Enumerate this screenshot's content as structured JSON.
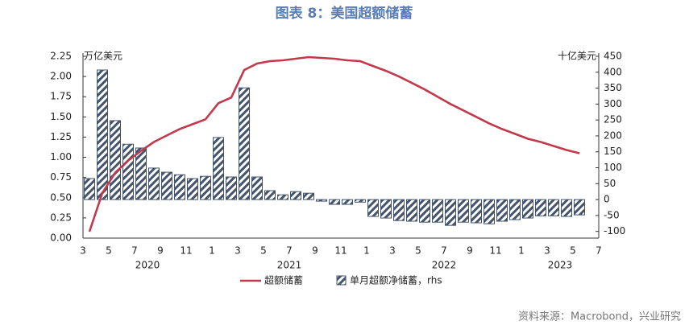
{
  "chart_data": {
    "type": "combo",
    "title": "图表 8：美国超额储蓄",
    "y_unit": "万亿美元",
    "y2_unit": "十亿美元",
    "source": "资料来源：Macrobond，兴业研究",
    "categories": [
      "3",
      null,
      "5",
      null,
      "7",
      null,
      "9",
      null,
      "11",
      null,
      "1",
      null,
      "3",
      null,
      "5",
      null,
      "7",
      null,
      "9",
      null,
      "11",
      null,
      "1",
      null,
      "3",
      null,
      "5",
      null,
      "7",
      null,
      "9",
      null,
      "11",
      null,
      "1",
      null,
      "3",
      null,
      "5",
      null,
      "7"
    ],
    "year_labels": [
      "2020",
      "2021",
      "2022",
      "2023"
    ],
    "ylim": [
      0,
      2.25
    ],
    "yticks": [
      {
        "value": 0,
        "label": "0.00"
      },
      {
        "value": 0.25,
        "label": "0.25"
      },
      {
        "value": 0.5,
        "label": "0.50"
      },
      {
        "value": 0.75,
        "label": "0.75"
      },
      {
        "value": 1,
        "label": "1.00"
      },
      {
        "value": 1.25,
        "label": "1.25"
      },
      {
        "value": 1.5,
        "label": "1.50"
      },
      {
        "value": 1.75,
        "label": "1.75"
      },
      {
        "value": 2,
        "label": "2.00"
      },
      {
        "value": 2.25,
        "label": "2.25"
      }
    ],
    "y2lim": [
      -121,
      450
    ],
    "y2ticks": [
      -100,
      -50,
      0,
      50,
      100,
      150,
      200,
      250,
      300,
      350,
      400,
      450
    ],
    "series": [
      {
        "name": "超额储蓄",
        "type": "line",
        "color": "#c3394c",
        "values": [
          0.08,
          0.56,
          0.81,
          0.96,
          1.08,
          1.19,
          1.27,
          1.35,
          1.41,
          1.47,
          1.67,
          1.74,
          2.08,
          2.16,
          2.19,
          2.2,
          2.22,
          2.24,
          2.23,
          2.22,
          2.2,
          2.19,
          2.13,
          2.07,
          2.0,
          1.92,
          1.84,
          1.75,
          1.66,
          1.58,
          1.5,
          1.42,
          1.35,
          1.29,
          1.23,
          1.19,
          1.14,
          1.09,
          1.05,
          null,
          null
        ]
      },
      {
        "name": "单月超额净储蓄，rhs",
        "type": "bar",
        "axis": "y2",
        "color": "#44546a",
        "values": [
          66,
          407,
          248,
          174,
          162,
          99,
          86,
          78,
          66,
          73,
          195,
          71,
          351,
          71,
          28,
          15,
          25,
          20,
          -5,
          -15,
          -15,
          -8,
          -53,
          -58,
          -66,
          -68,
          -71,
          -71,
          -81,
          -71,
          -73,
          -76,
          -68,
          -63,
          -58,
          -51,
          -51,
          -53,
          -48,
          null,
          null
        ]
      }
    ]
  }
}
